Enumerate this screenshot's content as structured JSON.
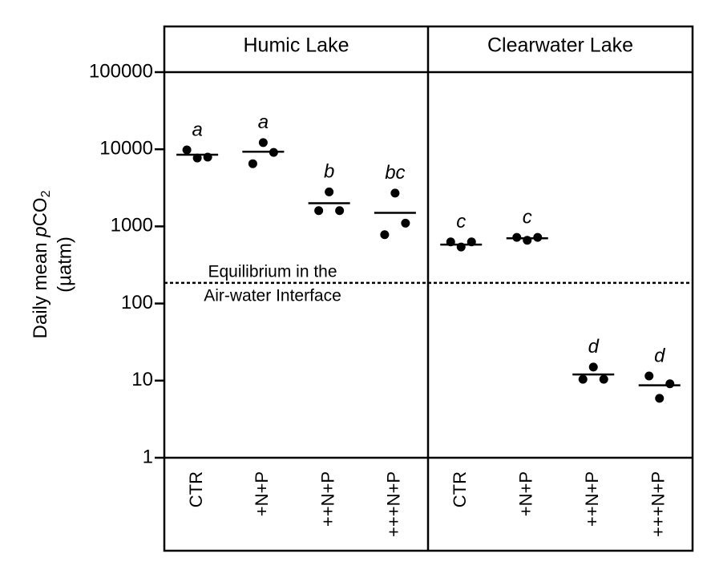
{
  "chart_data": {
    "type": "dot",
    "log_y": true,
    "ylim": [
      1,
      100000
    ],
    "yticks": [
      1,
      10,
      100,
      1000,
      10000,
      100000
    ],
    "ylabel": [
      "Daily mean ",
      "p",
      "CO",
      "2"
    ],
    "ylabel_unit": "(µatm)",
    "color": "#000000",
    "reference_line": {
      "value": 185,
      "label": [
        "Equilibrium in the",
        "Air-water Interface"
      ]
    },
    "panels": [
      {
        "title": "Humic Lake",
        "categories": [
          "CTR",
          "+N+P",
          "++N+P",
          "+++N+P"
        ],
        "points": [
          [
            9800,
            7700,
            7900
          ],
          [
            6500,
            12200,
            9100
          ],
          [
            1600,
            2800,
            1600
          ],
          [
            780,
            2700,
            1100
          ]
        ],
        "values": [
          8500,
          9300,
          2000,
          1500
        ],
        "annotations": [
          "a",
          "a",
          "b",
          "bc"
        ]
      },
      {
        "title": "Clearwater Lake",
        "categories": [
          "CTR",
          "+N+P",
          "++N+P",
          "+++N+P"
        ],
        "points": [
          [
            630,
            540,
            630
          ],
          [
            720,
            660,
            720
          ],
          [
            10.4,
            15,
            10.4
          ],
          [
            11.5,
            5.9,
            9.1
          ]
        ],
        "values": [
          580,
          700,
          12,
          8.7
        ],
        "annotations": [
          "c",
          "c",
          "d",
          "d"
        ]
      }
    ]
  }
}
